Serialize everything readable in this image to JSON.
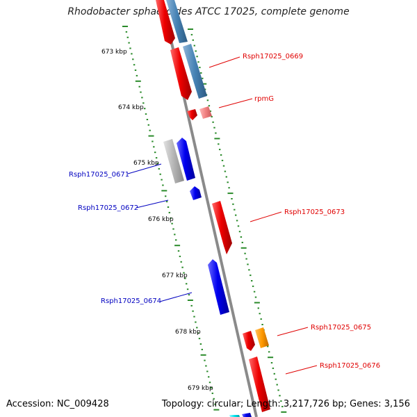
{
  "title": "Rhodobacter sphaeroides ATCC 17025, complete genome",
  "accession": "Accession: NC_009428",
  "topology": "Topology: circular; Length: 3,217,726 bp; Genes: 3,156",
  "ticks": [
    "673 kbp",
    "674 kbp",
    "675 kbp",
    "676 kbp",
    "677 kbp",
    "678 kbp",
    "679 kbp"
  ],
  "gene_labels": [
    {
      "text": "Rsph17025_0669",
      "color": "#e00000"
    },
    {
      "text": "rpmG",
      "color": "#e00000"
    },
    {
      "text": "Rsph17025_0671",
      "color": "#0000c0"
    },
    {
      "text": "Rsph17025_0672",
      "color": "#0000c0"
    },
    {
      "text": "Rsph17025_0673",
      "color": "#e00000"
    },
    {
      "text": "Rsph17025_0674",
      "color": "#0000c0"
    },
    {
      "text": "Rsph17025_0675",
      "color": "#e00000"
    },
    {
      "text": "Rsph17025_0676",
      "color": "#e00000"
    }
  ],
  "colors": {
    "backbone": "#8a8a8a",
    "tick": "#2a8a2a",
    "forward_gene": "#ee0000",
    "reverse_gene": "#0000ee",
    "feature_steelblue": "#4682b4",
    "feature_gray": "#b4b4b4",
    "feature_pink": "#f08080",
    "feature_orange": "#ff9900",
    "feature_cyan": "#00e5ee"
  }
}
